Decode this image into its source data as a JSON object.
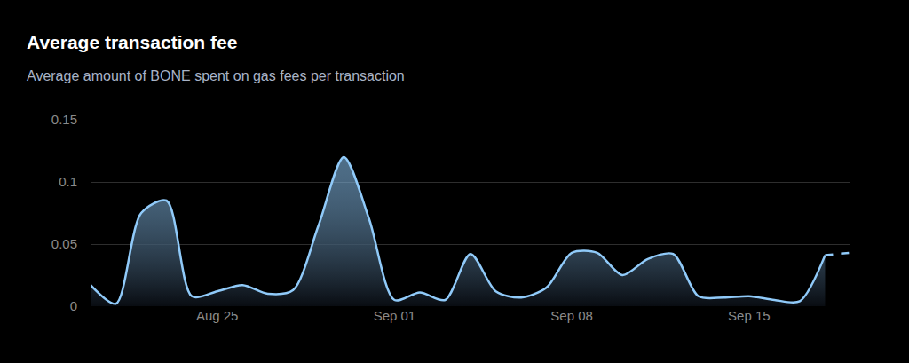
{
  "chart_data": {
    "type": "line",
    "title": "Average transaction fee",
    "subtitle": "Average amount of BONE spent on gas fees per transaction",
    "categories": [
      null,
      null,
      null,
      null,
      null,
      "Aug 25",
      null,
      null,
      null,
      null,
      null,
      null,
      "Sep 01",
      null,
      null,
      null,
      null,
      null,
      null,
      "Sep 08",
      null,
      null,
      null,
      null,
      null,
      null,
      "Sep 15",
      null,
      null,
      null,
      null
    ],
    "values": [
      0.017,
      0.002,
      0.075,
      0.085,
      0.008,
      0.012,
      0.017,
      0.01,
      0.013,
      0.065,
      0.12,
      0.07,
      0.005,
      0.011,
      0.005,
      0.042,
      0.012,
      0.007,
      0.015,
      0.043,
      0.043,
      0.025,
      0.038,
      0.042,
      0.008,
      0.007,
      0.008,
      0.005,
      0.004,
      0.041,
      0.043
    ],
    "color": "#90caf9",
    "ylim": [
      0,
      0.15
    ],
    "yticks": [
      0,
      0.05,
      0.1,
      0.15
    ],
    "grid": true
  }
}
